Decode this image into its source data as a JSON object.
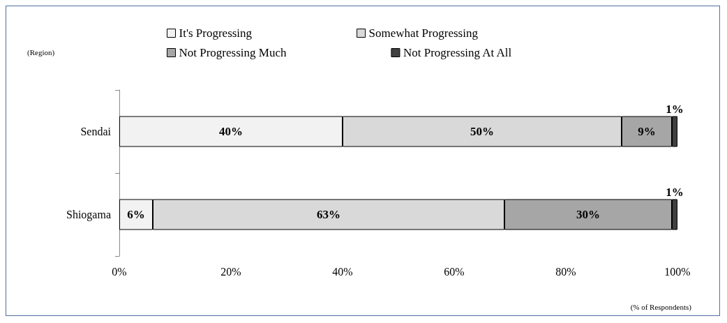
{
  "chart_data": {
    "type": "bar",
    "orientation": "horizontal",
    "stacked": true,
    "categories": [
      "Sendai",
      "Shiogama"
    ],
    "series": [
      {
        "name": "It's Progressing",
        "color": "#f2f2f2",
        "values": [
          40,
          6
        ],
        "value_labels": [
          "40%",
          "6%"
        ]
      },
      {
        "name": "Somewhat Progressing",
        "color": "#d9d9d9",
        "values": [
          50,
          63
        ],
        "value_labels": [
          "50%",
          "63%"
        ]
      },
      {
        "name": "Not Progressing Much",
        "color": "#a6a6a6",
        "values": [
          9,
          30
        ],
        "value_labels": [
          "9%",
          "30%"
        ]
      },
      {
        "name": "Not Progressing At All",
        "color": "#404040",
        "values": [
          1,
          1
        ],
        "value_labels": [
          "1%",
          "1%"
        ]
      }
    ],
    "xlim": [
      0,
      100
    ],
    "xticks": [
      {
        "value": 0,
        "label": "0%"
      },
      {
        "value": 20,
        "label": "20%"
      },
      {
        "value": 40,
        "label": "40%"
      },
      {
        "value": 60,
        "label": "60%"
      },
      {
        "value": 80,
        "label": "80%"
      },
      {
        "value": 100,
        "label": "100%"
      }
    ],
    "ylabel": "(Region)",
    "xlabel": "(% of Respondents)",
    "legend": "top",
    "grid": false
  }
}
